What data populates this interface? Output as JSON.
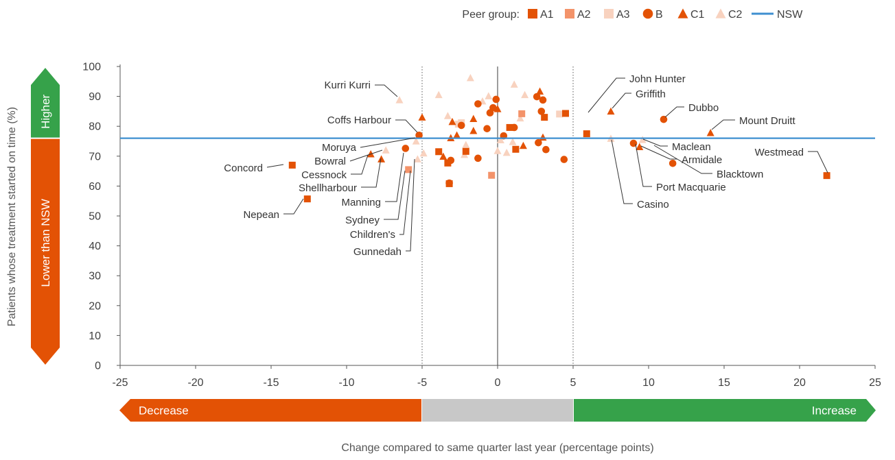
{
  "chart_data": {
    "type": "scatter",
    "xlabel": "Change compared to same quarter last year (percentage points)",
    "ylabel": "Patients whose treatment started on time (%)",
    "xlim": [
      -25,
      25
    ],
    "ylim": [
      0,
      100
    ],
    "xticks": [
      -25,
      -20,
      -15,
      -10,
      -5,
      0,
      5,
      10,
      15,
      20,
      25
    ],
    "yticks": [
      0,
      10,
      20,
      30,
      40,
      50,
      60,
      70,
      80,
      90,
      100
    ],
    "tick_labels_x": [
      "-25",
      "-20",
      "-15",
      "-10",
      "-5",
      "0",
      "5",
      "10",
      "15",
      "20",
      "25"
    ],
    "tick_labels_y": [
      "0",
      "10",
      "20",
      "30",
      "40",
      "50",
      "60",
      "70",
      "80",
      "90",
      "100"
    ],
    "nsw_value": 76,
    "vlines_dotted": [
      -5,
      5
    ],
    "vline_solid": 0,
    "legend": {
      "title": "Peer group:",
      "placement": "top-right",
      "entries": [
        {
          "key": "A1",
          "label": "A1",
          "shape": "square",
          "color": "#e35205"
        },
        {
          "key": "A2",
          "label": "A2",
          "shape": "square",
          "color": "#f3936a"
        },
        {
          "key": "A3",
          "label": "A3",
          "shape": "square",
          "color": "#f8d2bf"
        },
        {
          "key": "B",
          "label": "B",
          "shape": "circle",
          "color": "#e35205"
        },
        {
          "key": "C1",
          "label": "C1",
          "shape": "triangle",
          "color": "#e35205"
        },
        {
          "key": "C2",
          "label": "C2",
          "shape": "triangle",
          "color": "#f8d2bf"
        },
        {
          "key": "NSW",
          "label": "NSW",
          "shape": "line",
          "color": "#3e8fd0"
        }
      ]
    },
    "y_arrow": {
      "higher": "Higher",
      "lower": "Lower than NSW",
      "higher_color": "#36a24a",
      "lower_color": "#e35205"
    },
    "x_arrow": {
      "decrease": "Decrease",
      "increase": "Increase",
      "decrease_color": "#e35205",
      "neutral_color": "#c8c8c8",
      "increase_color": "#36a24a"
    },
    "points": [
      {
        "g": "A1",
        "x": -13.6,
        "y": 67
      },
      {
        "g": "A1",
        "x": -12.6,
        "y": 55.7
      },
      {
        "g": "A1",
        "x": 5.9,
        "y": 77.5
      },
      {
        "g": "A1",
        "x": 21.8,
        "y": 63.5
      },
      {
        "g": "A1",
        "x": 4.5,
        "y": 84.3
      },
      {
        "g": "A1",
        "x": 3.1,
        "y": 83
      },
      {
        "g": "A1",
        "x": 1.2,
        "y": 72.3
      },
      {
        "g": "A1",
        "x": -2.1,
        "y": 71.6
      },
      {
        "g": "A1",
        "x": -3.9,
        "y": 71.5
      },
      {
        "g": "A1",
        "x": -3.3,
        "y": 67.7
      },
      {
        "g": "A1",
        "x": -3.2,
        "y": 60.8
      },
      {
        "g": "A1",
        "x": 0.8,
        "y": 79.6
      },
      {
        "g": "A2",
        "x": -5.9,
        "y": 65.5
      },
      {
        "g": "A2",
        "x": -0.4,
        "y": 63.6
      },
      {
        "g": "A2",
        "x": 1.6,
        "y": 84.2
      },
      {
        "g": "A3",
        "x": -2.4,
        "y": 81.2
      },
      {
        "g": "A3",
        "x": 4.1,
        "y": 84.1
      },
      {
        "g": "A3",
        "x": -2.6,
        "y": 80.7
      },
      {
        "g": "B",
        "x": -5.2,
        "y": 77
      },
      {
        "g": "B",
        "x": 11,
        "y": 82.3
      },
      {
        "g": "B",
        "x": 9,
        "y": 74.3
      },
      {
        "g": "B",
        "x": 11.6,
        "y": 67.6
      },
      {
        "g": "B",
        "x": -6.1,
        "y": 72.6
      },
      {
        "g": "B",
        "x": -3.1,
        "y": 68.6
      },
      {
        "g": "B",
        "x": -3.2,
        "y": 61
      },
      {
        "g": "B",
        "x": -1.3,
        "y": 69.3
      },
      {
        "g": "B",
        "x": -2.4,
        "y": 80.3
      },
      {
        "g": "B",
        "x": -0.7,
        "y": 79.2
      },
      {
        "g": "B",
        "x": -0.5,
        "y": 84.5
      },
      {
        "g": "B",
        "x": -0.1,
        "y": 89
      },
      {
        "g": "B",
        "x": -0.3,
        "y": 86.2
      },
      {
        "g": "B",
        "x": -1.3,
        "y": 87.5
      },
      {
        "g": "B",
        "x": 0.4,
        "y": 76.8
      },
      {
        "g": "B",
        "x": 1.1,
        "y": 79.6
      },
      {
        "g": "B",
        "x": 2.6,
        "y": 89.9
      },
      {
        "g": "B",
        "x": 3,
        "y": 88.8
      },
      {
        "g": "B",
        "x": 2.9,
        "y": 85
      },
      {
        "g": "B",
        "x": 2.7,
        "y": 74.5
      },
      {
        "g": "B",
        "x": 3.2,
        "y": 72.2
      },
      {
        "g": "B",
        "x": 4.4,
        "y": 68.9
      },
      {
        "g": "C1",
        "x": 7.5,
        "y": 85
      },
      {
        "g": "C1",
        "x": 14.1,
        "y": 77.8
      },
      {
        "g": "C1",
        "x": 9.4,
        "y": 73.1
      },
      {
        "g": "C1",
        "x": -8.4,
        "y": 70.7
      },
      {
        "g": "C1",
        "x": -7.7,
        "y": 69
      },
      {
        "g": "C1",
        "x": -5,
        "y": 83
      },
      {
        "g": "C1",
        "x": -3.6,
        "y": 69.9
      },
      {
        "g": "C1",
        "x": -3,
        "y": 81.5
      },
      {
        "g": "C1",
        "x": -2.7,
        "y": 77
      },
      {
        "g": "C1",
        "x": -1.6,
        "y": 82.5
      },
      {
        "g": "C1",
        "x": -1.6,
        "y": 78.5
      },
      {
        "g": "C1",
        "x": -3.1,
        "y": 76.1
      },
      {
        "g": "C1",
        "x": 2.8,
        "y": 91.7
      },
      {
        "g": "C1",
        "x": 1.7,
        "y": 73.5
      },
      {
        "g": "C1",
        "x": 3,
        "y": 76.3
      },
      {
        "g": "C1",
        "x": 0,
        "y": 85.8
      },
      {
        "g": "C2",
        "x": -6.5,
        "y": 88.8
      },
      {
        "g": "C2",
        "x": -7.4,
        "y": 72
      },
      {
        "g": "C2",
        "x": -5.3,
        "y": 69
      },
      {
        "g": "C2",
        "x": 7.5,
        "y": 75.9
      },
      {
        "g": "C2",
        "x": 9.6,
        "y": 75.5
      },
      {
        "g": "C2",
        "x": -5.4,
        "y": 75
      },
      {
        "g": "C2",
        "x": -4.9,
        "y": 71
      },
      {
        "g": "C2",
        "x": -3.9,
        "y": 90.5
      },
      {
        "g": "C2",
        "x": -1.8,
        "y": 96.2
      },
      {
        "g": "C2",
        "x": -1,
        "y": 88.4
      },
      {
        "g": "C2",
        "x": 1.1,
        "y": 94
      },
      {
        "g": "C2",
        "x": 1.8,
        "y": 90.5
      },
      {
        "g": "C2",
        "x": -3.3,
        "y": 83.5
      },
      {
        "g": "C2",
        "x": -2.1,
        "y": 73.8
      },
      {
        "g": "C2",
        "x": -2.2,
        "y": 70.5
      },
      {
        "g": "C2",
        "x": 0,
        "y": 71.8
      },
      {
        "g": "C2",
        "x": 0.2,
        "y": 75.4
      },
      {
        "g": "C2",
        "x": 1,
        "y": 74.8
      },
      {
        "g": "C2",
        "x": 1.5,
        "y": 82.7
      },
      {
        "g": "C2",
        "x": -0.6,
        "y": 90.1
      },
      {
        "g": "C2",
        "x": 0.6,
        "y": 71.2
      }
    ],
    "annotations": [
      {
        "text": "Kurri Kurri",
        "x": -6.5,
        "y": 88.8
      },
      {
        "text": "Coffs Harbour",
        "x": -5.2,
        "y": 77
      },
      {
        "text": "Moruya",
        "x": -5.4,
        "y": 75
      },
      {
        "text": "Bowral",
        "x": -7.4,
        "y": 72
      },
      {
        "text": "Concord",
        "x": -13.6,
        "y": 67
      },
      {
        "text": "Cessnock",
        "x": -8.4,
        "y": 70.7
      },
      {
        "text": "Shellharbour",
        "x": -7.7,
        "y": 69
      },
      {
        "text": "Nepean",
        "x": -12.6,
        "y": 55.7
      },
      {
        "text": "Manning",
        "x": -6.1,
        "y": 72.6
      },
      {
        "text": "Sydney",
        "x": -5.9,
        "y": 65.5
      },
      {
        "text": "Children's",
        "x": -5.6,
        "y": 65.5
      },
      {
        "text": "Gunnedah",
        "x": -5.3,
        "y": 69
      },
      {
        "text": "John Hunter",
        "x": 5.9,
        "y": 77.5
      },
      {
        "text": "Griffith",
        "x": 7.5,
        "y": 85
      },
      {
        "text": "Dubbo",
        "x": 11,
        "y": 82.3
      },
      {
        "text": "Mount Druitt",
        "x": 14.1,
        "y": 77.8
      },
      {
        "text": "Westmead",
        "x": 21.8,
        "y": 63.5
      },
      {
        "text": "Maclean",
        "x": 9.6,
        "y": 75.5
      },
      {
        "text": "Armidale",
        "x": 9.4,
        "y": 73.1
      },
      {
        "text": "Blacktown",
        "x": 11.6,
        "y": 67.6
      },
      {
        "text": "Port Macquarie",
        "x": 9,
        "y": 74.3
      },
      {
        "text": "Casino",
        "x": 7.5,
        "y": 75.9
      }
    ]
  }
}
